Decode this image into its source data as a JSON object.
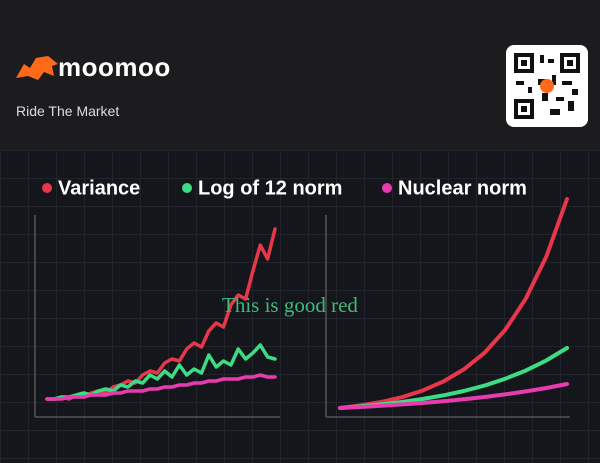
{
  "header": {
    "brand": "moomoo",
    "tagline": "Ride The Market"
  },
  "chart_data": [
    {
      "type": "line",
      "annotation": "This is good red",
      "x": [
        0,
        1,
        2,
        3,
        4,
        5,
        6,
        7,
        8,
        9,
        10,
        11,
        12,
        13,
        14,
        15,
        16,
        17,
        18,
        19,
        20,
        21,
        22,
        23,
        24,
        25,
        26,
        27,
        28,
        29,
        30,
        31
      ],
      "xlim": [
        0,
        31
      ],
      "ylim": [
        0,
        110
      ],
      "series": [
        {
          "name": "Variance",
          "color": "#e8364a",
          "values": [
            8,
            8,
            9,
            8,
            10,
            9,
            11,
            12,
            11,
            14,
            15,
            17,
            16,
            20,
            22,
            21,
            26,
            28,
            27,
            33,
            36,
            34,
            42,
            46,
            44,
            55,
            60,
            58,
            72,
            85,
            78,
            93
          ]
        },
        {
          "name": "Log of 12 norm",
          "color": "#3ddc84",
          "values": [
            8,
            8,
            9,
            9,
            10,
            11,
            10,
            12,
            13,
            12,
            15,
            14,
            17,
            16,
            20,
            18,
            22,
            19,
            25,
            20,
            23,
            21,
            30,
            24,
            27,
            25,
            33,
            28,
            31,
            35,
            29,
            28
          ]
        },
        {
          "name": "Nuclear norm",
          "color": "#e83bb0",
          "values": [
            8,
            8,
            8,
            9,
            9,
            9,
            10,
            10,
            10,
            11,
            11,
            12,
            12,
            12,
            13,
            13,
            14,
            14,
            15,
            15,
            16,
            16,
            17,
            17,
            18,
            18,
            18,
            19,
            19,
            20,
            19,
            19
          ]
        }
      ]
    },
    {
      "type": "line",
      "x": [
        0,
        1,
        2,
        3,
        4,
        5,
        6,
        7,
        8,
        9,
        10,
        11
      ],
      "xlim": [
        0,
        11
      ],
      "ylim": [
        0,
        110
      ],
      "series": [
        {
          "color": "#e8364a",
          "values": [
            3.5,
            4.8,
            6.5,
            8.9,
            12.2,
            16.7,
            22.8,
            31.1,
            42.5,
            58.1,
            79.3,
            108
          ]
        },
        {
          "color": "#3ddc84",
          "values": [
            3.5,
            4.3,
            5.3,
            6.5,
            8.0,
            9.8,
            12.0,
            14.7,
            18.1,
            22.2,
            27.3,
            33.5
          ]
        },
        {
          "color": "#e83bb0",
          "values": [
            3.5,
            4.0,
            4.6,
            5.3,
            6.0,
            6.9,
            7.9,
            9.0,
            10.3,
            11.8,
            13.5,
            15.5
          ]
        }
      ]
    }
  ]
}
